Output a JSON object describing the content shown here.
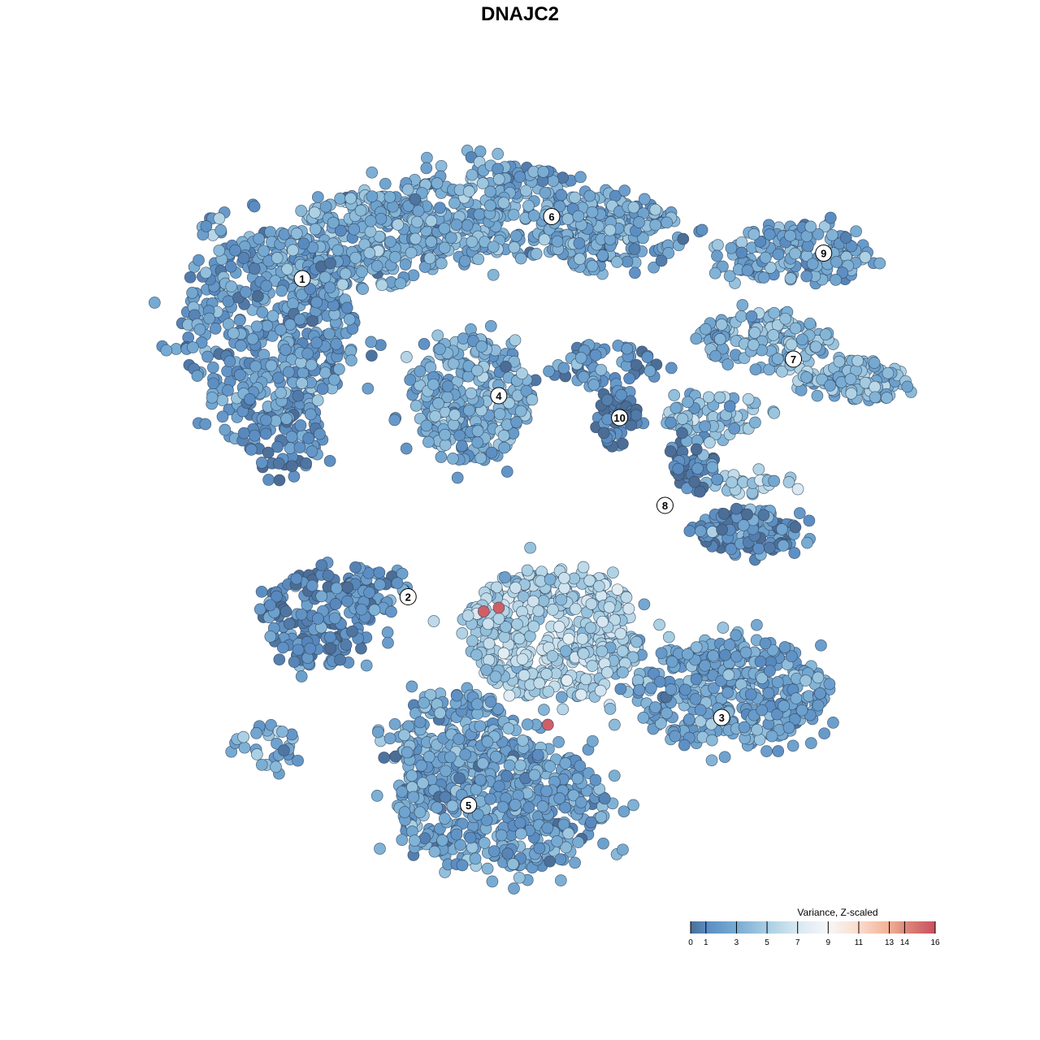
{
  "chart_data": {
    "type": "scatter",
    "title": "DNAJC2",
    "xlabel": "",
    "ylabel": "",
    "grid": false,
    "legend": {
      "title": "Variance, Z-scaled",
      "placement": "bottom-right",
      "ticks": [
        0,
        1,
        3,
        5,
        7,
        9,
        11,
        13,
        14,
        16
      ],
      "range": [
        0,
        16
      ],
      "colors": [
        {
          "v": 0,
          "c": "#4b6d96"
        },
        {
          "v": 1,
          "c": "#5a8cc2"
        },
        {
          "v": 3,
          "c": "#78acd3"
        },
        {
          "v": 5,
          "c": "#a8cee2"
        },
        {
          "v": 7,
          "c": "#d8e8f1"
        },
        {
          "v": 9,
          "c": "#f7f7f7"
        },
        {
          "v": 11,
          "c": "#fbdccd"
        },
        {
          "v": 13,
          "c": "#f2af95"
        },
        {
          "v": 14,
          "c": "#df8a7d"
        },
        {
          "v": 16,
          "c": "#c8505f"
        }
      ]
    },
    "cluster_labels": [
      {
        "label": "1",
        "x": -6.3,
        "y": 6.6
      },
      {
        "label": "2",
        "x": -3.5,
        "y": -2.1
      },
      {
        "label": "3",
        "x": 4.8,
        "y": -5.4
      },
      {
        "label": "4",
        "x": -1.1,
        "y": 3.4
      },
      {
        "label": "5",
        "x": -1.9,
        "y": -7.8
      },
      {
        "label": "6",
        "x": 0.3,
        "y": 8.3
      },
      {
        "label": "7",
        "x": 6.7,
        "y": 4.4
      },
      {
        "label": "8",
        "x": 3.3,
        "y": 0.4
      },
      {
        "label": "9",
        "x": 7.5,
        "y": 7.3
      },
      {
        "label": "10",
        "x": 2.1,
        "y": 2.8
      }
    ],
    "point_groups": [
      {
        "cluster": "1",
        "x": -7.2,
        "y": 5.3,
        "sx": 2.3,
        "sy": 2.6,
        "n": 520,
        "value": 2.2
      },
      {
        "cluster": "1",
        "x": -4.6,
        "y": 7.6,
        "sx": 2.0,
        "sy": 1.3,
        "n": 260,
        "value": 3.2
      },
      {
        "cluster": "1",
        "x": -6.8,
        "y": 2.2,
        "sx": 1.1,
        "sy": 0.9,
        "n": 60,
        "value": 1.0
      },
      {
        "cluster": "6",
        "x": -1.0,
        "y": 8.4,
        "sx": 3.4,
        "sy": 1.3,
        "n": 380,
        "value": 2.8
      },
      {
        "cluster": "6",
        "x": 2.0,
        "y": 7.8,
        "sx": 1.8,
        "sy": 1.1,
        "n": 140,
        "value": 2.6
      },
      {
        "cluster": "4",
        "x": -1.8,
        "y": 3.3,
        "sx": 1.6,
        "sy": 1.7,
        "n": 300,
        "value": 3.3
      },
      {
        "cluster": "10",
        "x": 2.0,
        "y": 2.8,
        "sx": 0.6,
        "sy": 0.8,
        "n": 60,
        "value": 0.5
      },
      {
        "cluster": "10",
        "x": 1.6,
        "y": 4.2,
        "sx": 1.5,
        "sy": 0.6,
        "n": 70,
        "value": 1.8
      },
      {
        "cluster": "9",
        "x": 6.8,
        "y": 7.3,
        "sx": 1.9,
        "sy": 0.8,
        "n": 150,
        "value": 2.6
      },
      {
        "cluster": "7",
        "x": 5.9,
        "y": 4.9,
        "sx": 1.8,
        "sy": 0.8,
        "n": 140,
        "value": 3.6
      },
      {
        "cluster": "7",
        "x": 8.3,
        "y": 3.8,
        "sx": 1.5,
        "sy": 0.6,
        "n": 110,
        "value": 3.8
      },
      {
        "cluster": "7",
        "x": 4.6,
        "y": 2.9,
        "sx": 1.3,
        "sy": 0.6,
        "n": 70,
        "value": 4.2
      },
      {
        "cluster": "8",
        "x": 5.5,
        "y": -0.3,
        "sx": 1.3,
        "sy": 0.7,
        "n": 140,
        "value": 1.6
      },
      {
        "cluster": "8",
        "x": 4.0,
        "y": 1.6,
        "sx": 0.6,
        "sy": 0.9,
        "n": 50,
        "value": 0.8
      },
      {
        "cluster": "8",
        "x": 5.6,
        "y": 1.0,
        "sx": 1.0,
        "sy": 0.3,
        "n": 30,
        "value": 5.0
      },
      {
        "cluster": "2",
        "x": -5.9,
        "y": -2.7,
        "sx": 1.5,
        "sy": 1.3,
        "n": 170,
        "value": 1.0
      },
      {
        "cluster": "2",
        "x": -4.4,
        "y": -2.0,
        "sx": 0.9,
        "sy": 0.6,
        "n": 60,
        "value": 1.6
      },
      {
        "cluster": "",
        "x": -7.2,
        "y": -6.2,
        "sx": 0.9,
        "sy": 0.6,
        "n": 30,
        "value": 3.0
      },
      {
        "cluster": "",
        "x": 0.3,
        "y": -3.1,
        "sx": 2.4,
        "sy": 1.8,
        "n": 480,
        "value": 5.2
      },
      {
        "cluster": "3",
        "x": 5.0,
        "y": -4.7,
        "sx": 2.6,
        "sy": 1.5,
        "n": 420,
        "value": 2.5
      },
      {
        "cluster": "5",
        "x": -1.0,
        "y": -7.8,
        "sx": 2.8,
        "sy": 1.8,
        "n": 520,
        "value": 2.4
      },
      {
        "cluster": "5",
        "x": -2.3,
        "y": -5.8,
        "sx": 1.7,
        "sy": 1.1,
        "n": 160,
        "value": 3.0
      }
    ],
    "highlight_points": [
      {
        "x": -1.5,
        "y": -2.5,
        "value": 15.5
      },
      {
        "x": -1.1,
        "y": -2.4,
        "value": 15.5
      },
      {
        "x": 0.2,
        "y": -5.6,
        "value": 15.5
      }
    ]
  }
}
